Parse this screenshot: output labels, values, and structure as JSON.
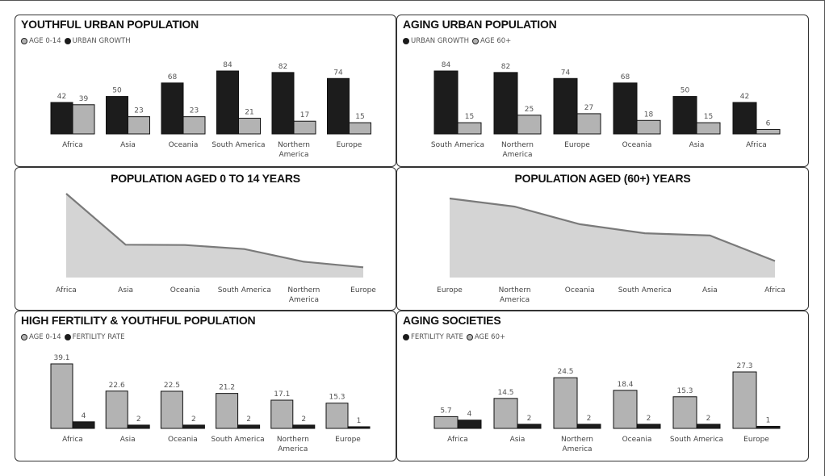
{
  "colors": {
    "dark": "#1c1c1c",
    "light": "#b3b3b3",
    "stroke": "#111111",
    "area_fill": "#d4d4d4",
    "area_line": "#7a7a7a"
  },
  "panels": {
    "p1": {
      "title": "YOUTHFUL URBAN POPULATION",
      "legend": [
        {
          "label": "AGE 0-14",
          "color": "light"
        },
        {
          "label": "URBAN GROWTH",
          "color": "dark"
        }
      ]
    },
    "p2": {
      "title": "AGING URBAN POPULATION",
      "legend": [
        {
          "label": "URBAN GROWTH",
          "color": "dark"
        },
        {
          "label": "AGE 60+",
          "color": "light"
        }
      ]
    },
    "p3": {
      "title": "POPULATION AGED 0 TO 14 YEARS"
    },
    "p4": {
      "title": "POPULATION AGED (60+) YEARS"
    },
    "p5": {
      "title": "HIGH FERTILITY & YOUTHFUL POPULATION",
      "legend": [
        {
          "label": "AGE 0-14",
          "color": "light"
        },
        {
          "label": "FERTILITY RATE",
          "color": "dark"
        }
      ]
    },
    "p6": {
      "title": "AGING SOCIETIES",
      "legend": [
        {
          "label": "FERTILITY RATE",
          "color": "dark"
        },
        {
          "label": "AGE 60+",
          "color": "light"
        }
      ]
    }
  },
  "chart_data": [
    {
      "id": "p1",
      "type": "bar",
      "title": "YOUTHFUL URBAN POPULATION",
      "categories": [
        "Africa",
        "Asia",
        "Oceania",
        "South America",
        "Northern America",
        "Europe"
      ],
      "series": [
        {
          "name": "URBAN GROWTH",
          "color": "dark",
          "values": [
            42,
            50,
            68,
            84,
            82,
            74
          ]
        },
        {
          "name": "AGE 0-14",
          "color": "light",
          "values": [
            39,
            23,
            23,
            21,
            17,
            15
          ]
        }
      ],
      "ylim": [
        0,
        84
      ],
      "legend_position": "top-left",
      "grid": false
    },
    {
      "id": "p2",
      "type": "bar",
      "title": "AGING URBAN POPULATION",
      "categories": [
        "South America",
        "Northern America",
        "Europe",
        "Oceania",
        "Asia",
        "Africa"
      ],
      "series": [
        {
          "name": "URBAN GROWTH",
          "color": "dark",
          "values": [
            84,
            82,
            74,
            68,
            50,
            42
          ]
        },
        {
          "name": "AGE 60+",
          "color": "light",
          "values": [
            15,
            25,
            27,
            18,
            15,
            6
          ]
        }
      ],
      "ylim": [
        0,
        84
      ],
      "legend_position": "top-left",
      "grid": false
    },
    {
      "id": "p3",
      "type": "area",
      "title": "POPULATION AGED 0 TO 14 YEARS",
      "categories": [
        "Africa",
        "Asia",
        "Oceania",
        "South America",
        "Northern America",
        "Europe"
      ],
      "values": [
        39.1,
        22.6,
        22.5,
        21.2,
        17.1,
        15.3
      ],
      "ylim": [
        12,
        39.1
      ],
      "grid": false
    },
    {
      "id": "p4",
      "type": "area",
      "title": "POPULATION AGED (60+) YEARS",
      "categories": [
        "Europe",
        "Northern America",
        "Oceania",
        "South America",
        "Asia",
        "Africa"
      ],
      "values": [
        27.3,
        24.5,
        18.4,
        15.3,
        14.5,
        5.7
      ],
      "ylim": [
        0,
        27.3
      ],
      "grid": false
    },
    {
      "id": "p5",
      "type": "bar",
      "title": "HIGH FERTILITY & YOUTHFUL POPULATION",
      "categories": [
        "Africa",
        "Asia",
        "Oceania",
        "South America",
        "Northern America",
        "Europe"
      ],
      "series": [
        {
          "name": "AGE 0-14",
          "color": "light",
          "values": [
            39.1,
            22.6,
            22.5,
            21.2,
            17.1,
            15.3
          ]
        },
        {
          "name": "FERTILITY RATE",
          "color": "dark",
          "values": [
            4,
            2,
            2,
            2,
            2,
            1
          ]
        }
      ],
      "ylim": [
        0,
        39.1
      ],
      "legend_position": "top-left",
      "grid": false
    },
    {
      "id": "p6",
      "type": "bar",
      "title": "AGING SOCIETIES",
      "categories": [
        "Africa",
        "Asia",
        "Northern America",
        "Oceania",
        "South America",
        "Europe"
      ],
      "series": [
        {
          "name": "AGE 60+",
          "color": "light",
          "values": [
            5.7,
            14.5,
            24.5,
            18.4,
            15.3,
            27.3
          ]
        },
        {
          "name": "FERTILITY RATE",
          "color": "dark",
          "values": [
            4,
            2,
            2,
            2,
            2,
            1
          ]
        }
      ],
      "ylim": [
        0,
        27.3
      ],
      "legend_position": "top-left",
      "grid": false
    }
  ]
}
